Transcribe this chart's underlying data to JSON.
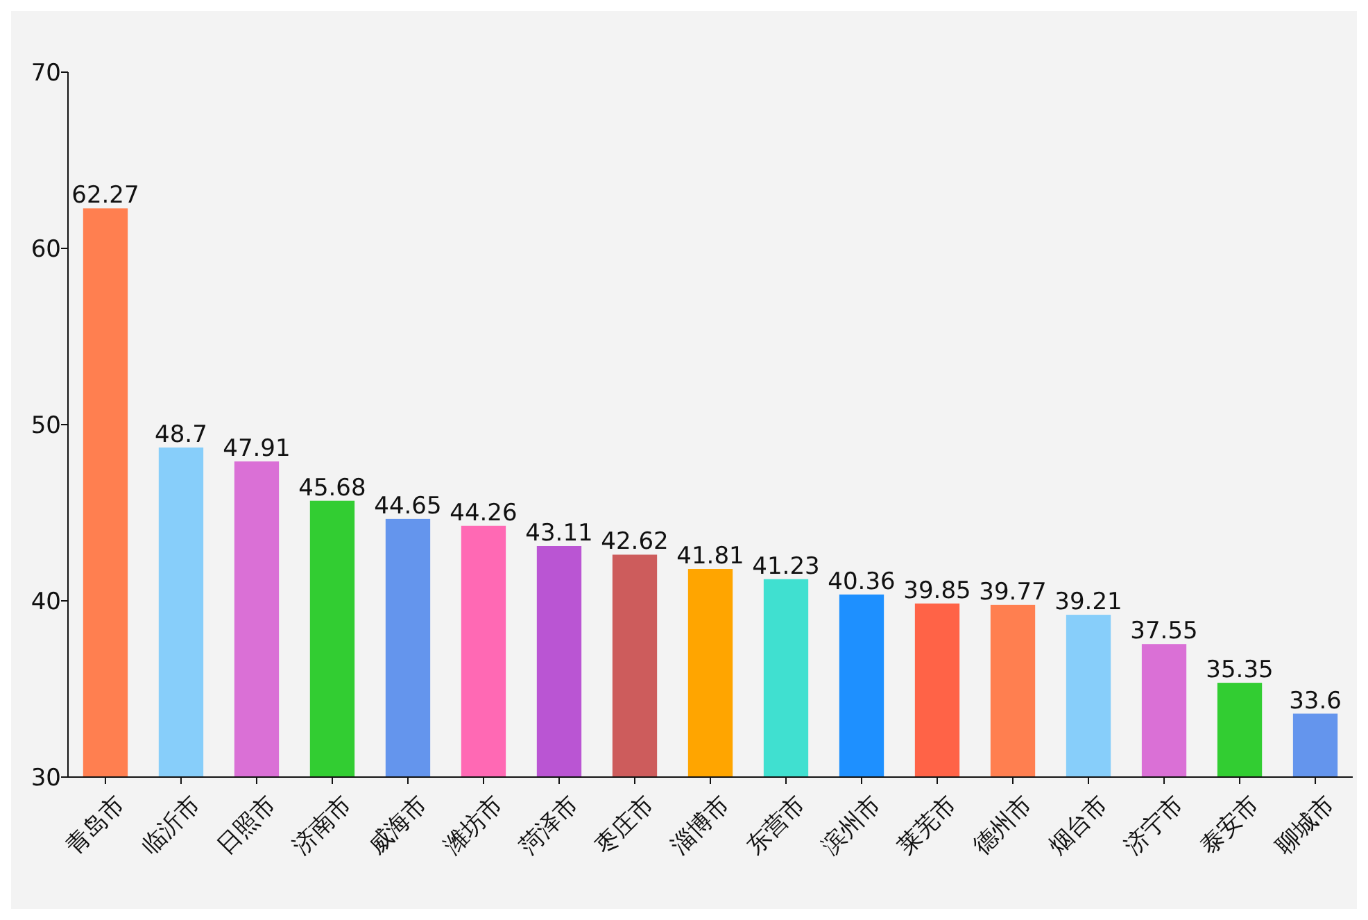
{
  "chart_data": {
    "type": "bar",
    "categories": [
      "青岛市",
      "临沂市",
      "日照市",
      "济南市",
      "威海市",
      "潍坊市",
      "菏泽市",
      "枣庄市",
      "淄博市",
      "东营市",
      "滨州市",
      "莱芜市",
      "德州市",
      "烟台市",
      "济宁市",
      "泰安市",
      "聊城市"
    ],
    "values": [
      62.27,
      48.7,
      47.91,
      45.68,
      44.65,
      44.26,
      43.11,
      42.62,
      41.81,
      41.23,
      40.36,
      39.85,
      39.77,
      39.21,
      37.55,
      35.35,
      33.6
    ],
    "colors": [
      "#ff7f50",
      "#87cefa",
      "#da70d6",
      "#32cd32",
      "#6495ed",
      "#ff69b4",
      "#ba55d3",
      "#cd5c5c",
      "#ffa500",
      "#40e0d0",
      "#1e90ff",
      "#ff6347",
      "#ff7f50",
      "#87cefa",
      "#da70d6",
      "#32cd32",
      "#6495ed"
    ],
    "ylim": [
      30,
      70
    ],
    "yticks": [
      30,
      40,
      50,
      60,
      70
    ],
    "data_labels": true
  }
}
